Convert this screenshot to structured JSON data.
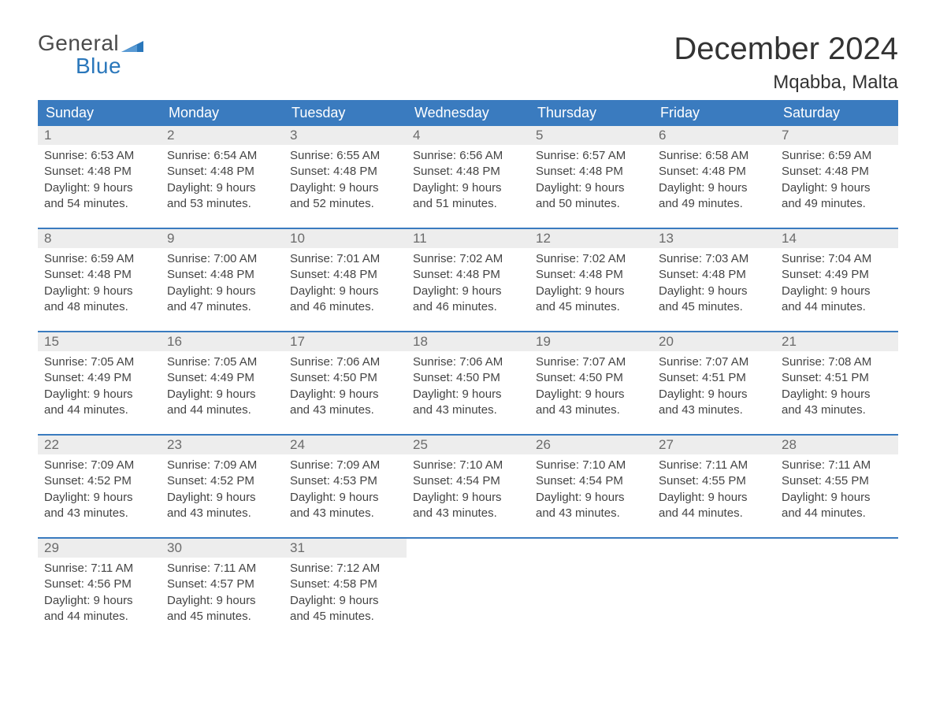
{
  "logo": {
    "word1": "General",
    "word2": "Blue",
    "flag_color": "#2a77bb"
  },
  "title": "December 2024",
  "location": "Mqabba, Malta",
  "colors": {
    "header_bg": "#3a7bbf",
    "header_text": "#ffffff",
    "daynum_bg": "#ededed",
    "daynum_text": "#6b6b6b",
    "rule": "#3a7bbf"
  },
  "day_headers": [
    "Sunday",
    "Monday",
    "Tuesday",
    "Wednesday",
    "Thursday",
    "Friday",
    "Saturday"
  ],
  "weeks": [
    [
      {
        "n": "1",
        "sunrise": "Sunrise: 6:53 AM",
        "sunset": "Sunset: 4:48 PM",
        "d1": "Daylight: 9 hours",
        "d2": "and 54 minutes."
      },
      {
        "n": "2",
        "sunrise": "Sunrise: 6:54 AM",
        "sunset": "Sunset: 4:48 PM",
        "d1": "Daylight: 9 hours",
        "d2": "and 53 minutes."
      },
      {
        "n": "3",
        "sunrise": "Sunrise: 6:55 AM",
        "sunset": "Sunset: 4:48 PM",
        "d1": "Daylight: 9 hours",
        "d2": "and 52 minutes."
      },
      {
        "n": "4",
        "sunrise": "Sunrise: 6:56 AM",
        "sunset": "Sunset: 4:48 PM",
        "d1": "Daylight: 9 hours",
        "d2": "and 51 minutes."
      },
      {
        "n": "5",
        "sunrise": "Sunrise: 6:57 AM",
        "sunset": "Sunset: 4:48 PM",
        "d1": "Daylight: 9 hours",
        "d2": "and 50 minutes."
      },
      {
        "n": "6",
        "sunrise": "Sunrise: 6:58 AM",
        "sunset": "Sunset: 4:48 PM",
        "d1": "Daylight: 9 hours",
        "d2": "and 49 minutes."
      },
      {
        "n": "7",
        "sunrise": "Sunrise: 6:59 AM",
        "sunset": "Sunset: 4:48 PM",
        "d1": "Daylight: 9 hours",
        "d2": "and 49 minutes."
      }
    ],
    [
      {
        "n": "8",
        "sunrise": "Sunrise: 6:59 AM",
        "sunset": "Sunset: 4:48 PM",
        "d1": "Daylight: 9 hours",
        "d2": "and 48 minutes."
      },
      {
        "n": "9",
        "sunrise": "Sunrise: 7:00 AM",
        "sunset": "Sunset: 4:48 PM",
        "d1": "Daylight: 9 hours",
        "d2": "and 47 minutes."
      },
      {
        "n": "10",
        "sunrise": "Sunrise: 7:01 AM",
        "sunset": "Sunset: 4:48 PM",
        "d1": "Daylight: 9 hours",
        "d2": "and 46 minutes."
      },
      {
        "n": "11",
        "sunrise": "Sunrise: 7:02 AM",
        "sunset": "Sunset: 4:48 PM",
        "d1": "Daylight: 9 hours",
        "d2": "and 46 minutes."
      },
      {
        "n": "12",
        "sunrise": "Sunrise: 7:02 AM",
        "sunset": "Sunset: 4:48 PM",
        "d1": "Daylight: 9 hours",
        "d2": "and 45 minutes."
      },
      {
        "n": "13",
        "sunrise": "Sunrise: 7:03 AM",
        "sunset": "Sunset: 4:48 PM",
        "d1": "Daylight: 9 hours",
        "d2": "and 45 minutes."
      },
      {
        "n": "14",
        "sunrise": "Sunrise: 7:04 AM",
        "sunset": "Sunset: 4:49 PM",
        "d1": "Daylight: 9 hours",
        "d2": "and 44 minutes."
      }
    ],
    [
      {
        "n": "15",
        "sunrise": "Sunrise: 7:05 AM",
        "sunset": "Sunset: 4:49 PM",
        "d1": "Daylight: 9 hours",
        "d2": "and 44 minutes."
      },
      {
        "n": "16",
        "sunrise": "Sunrise: 7:05 AM",
        "sunset": "Sunset: 4:49 PM",
        "d1": "Daylight: 9 hours",
        "d2": "and 44 minutes."
      },
      {
        "n": "17",
        "sunrise": "Sunrise: 7:06 AM",
        "sunset": "Sunset: 4:50 PM",
        "d1": "Daylight: 9 hours",
        "d2": "and 43 minutes."
      },
      {
        "n": "18",
        "sunrise": "Sunrise: 7:06 AM",
        "sunset": "Sunset: 4:50 PM",
        "d1": "Daylight: 9 hours",
        "d2": "and 43 minutes."
      },
      {
        "n": "19",
        "sunrise": "Sunrise: 7:07 AM",
        "sunset": "Sunset: 4:50 PM",
        "d1": "Daylight: 9 hours",
        "d2": "and 43 minutes."
      },
      {
        "n": "20",
        "sunrise": "Sunrise: 7:07 AM",
        "sunset": "Sunset: 4:51 PM",
        "d1": "Daylight: 9 hours",
        "d2": "and 43 minutes."
      },
      {
        "n": "21",
        "sunrise": "Sunrise: 7:08 AM",
        "sunset": "Sunset: 4:51 PM",
        "d1": "Daylight: 9 hours",
        "d2": "and 43 minutes."
      }
    ],
    [
      {
        "n": "22",
        "sunrise": "Sunrise: 7:09 AM",
        "sunset": "Sunset: 4:52 PM",
        "d1": "Daylight: 9 hours",
        "d2": "and 43 minutes."
      },
      {
        "n": "23",
        "sunrise": "Sunrise: 7:09 AM",
        "sunset": "Sunset: 4:52 PM",
        "d1": "Daylight: 9 hours",
        "d2": "and 43 minutes."
      },
      {
        "n": "24",
        "sunrise": "Sunrise: 7:09 AM",
        "sunset": "Sunset: 4:53 PM",
        "d1": "Daylight: 9 hours",
        "d2": "and 43 minutes."
      },
      {
        "n": "25",
        "sunrise": "Sunrise: 7:10 AM",
        "sunset": "Sunset: 4:54 PM",
        "d1": "Daylight: 9 hours",
        "d2": "and 43 minutes."
      },
      {
        "n": "26",
        "sunrise": "Sunrise: 7:10 AM",
        "sunset": "Sunset: 4:54 PM",
        "d1": "Daylight: 9 hours",
        "d2": "and 43 minutes."
      },
      {
        "n": "27",
        "sunrise": "Sunrise: 7:11 AM",
        "sunset": "Sunset: 4:55 PM",
        "d1": "Daylight: 9 hours",
        "d2": "and 44 minutes."
      },
      {
        "n": "28",
        "sunrise": "Sunrise: 7:11 AM",
        "sunset": "Sunset: 4:55 PM",
        "d1": "Daylight: 9 hours",
        "d2": "and 44 minutes."
      }
    ],
    [
      {
        "n": "29",
        "sunrise": "Sunrise: 7:11 AM",
        "sunset": "Sunset: 4:56 PM",
        "d1": "Daylight: 9 hours",
        "d2": "and 44 minutes."
      },
      {
        "n": "30",
        "sunrise": "Sunrise: 7:11 AM",
        "sunset": "Sunset: 4:57 PM",
        "d1": "Daylight: 9 hours",
        "d2": "and 45 minutes."
      },
      {
        "n": "31",
        "sunrise": "Sunrise: 7:12 AM",
        "sunset": "Sunset: 4:58 PM",
        "d1": "Daylight: 9 hours",
        "d2": "and 45 minutes."
      },
      null,
      null,
      null,
      null
    ]
  ]
}
